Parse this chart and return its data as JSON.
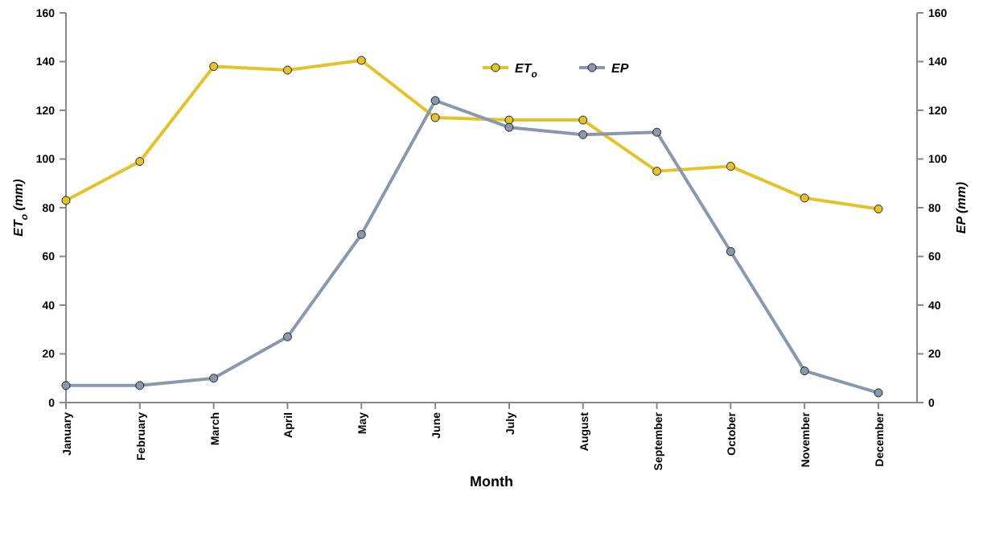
{
  "chart_data": {
    "type": "line",
    "xlabel": "Month",
    "ylabel": "ET$_{o}$ (mm)",
    "y2label": "EP (mm)",
    "categories": [
      "January",
      "February",
      "March",
      "April",
      "May",
      "June",
      "July",
      "August",
      "September",
      "October",
      "November",
      "December"
    ],
    "series": [
      {
        "name": "ET$_{o}$",
        "color": "#e3c22a",
        "values": [
          83,
          99,
          138,
          136.5,
          140.5,
          117,
          116,
          116,
          95,
          97,
          84,
          79.5
        ]
      },
      {
        "name": "EP",
        "color": "#8a98ad",
        "axis": "y2",
        "values": [
          7,
          7,
          10,
          27,
          69,
          124,
          113,
          110,
          111,
          62,
          13,
          4
        ]
      }
    ],
    "ylim": [
      0,
      160
    ],
    "yticks": [
      0,
      20,
      40,
      60,
      80,
      100,
      120,
      140,
      160
    ],
    "y2lim": [
      0,
      160
    ],
    "y2ticks": [
      0,
      20,
      40,
      60,
      80,
      100,
      120,
      140,
      160
    ],
    "marker": "circle",
    "line_style": "solid",
    "legend": "top",
    "grid": false
  }
}
